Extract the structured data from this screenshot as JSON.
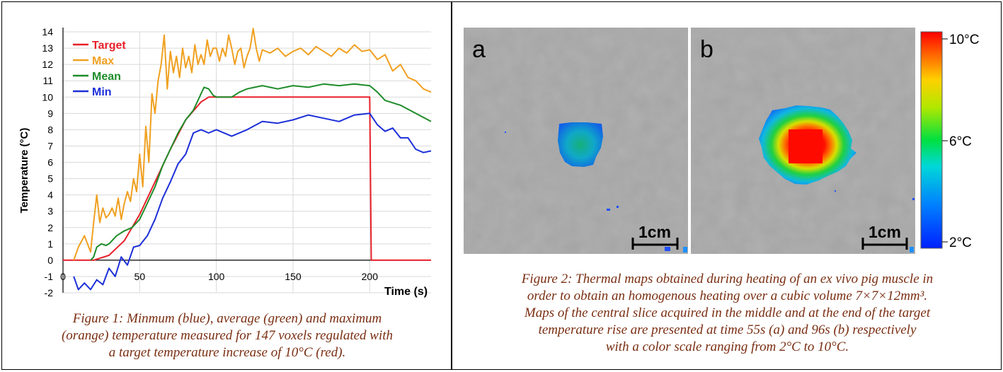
{
  "figure1": {
    "caption_lines": [
      "Figure 1: Minmum (blue), average (green) and maximum",
      "(orange) temperature measured for 147 voxels regulated with",
      "a target temperature increase of 10°C (red)."
    ],
    "chart_data": {
      "type": "line",
      "title": "",
      "xlabel": "Time (s)",
      "ylabel": "Temperature (°C)",
      "xlim": [
        0,
        240
      ],
      "ylim": [
        -2,
        14
      ],
      "x_ticks": [
        0,
        50,
        100,
        150,
        200
      ],
      "y_ticks": [
        -2,
        -1,
        0,
        1,
        2,
        3,
        4,
        5,
        6,
        7,
        8,
        9,
        10,
        11,
        12,
        13,
        14
      ],
      "grid": true,
      "legend_position": "top-left",
      "series": [
        {
          "name": "Target",
          "color": "#e8202a",
          "x": [
            0,
            20,
            30,
            40,
            50,
            60,
            70,
            80,
            90,
            95,
            100,
            200,
            201,
            240
          ],
          "y": [
            0,
            0,
            0.3,
            1.2,
            2.8,
            4.8,
            6.8,
            8.6,
            9.7,
            10,
            10,
            10,
            0,
            0
          ]
        },
        {
          "name": "Max",
          "color": "#f0a020",
          "x": [
            7,
            10,
            14,
            18,
            20,
            22,
            24,
            26,
            28,
            30,
            32,
            34,
            36,
            38,
            40,
            42,
            44,
            46,
            48,
            50,
            52,
            54,
            56,
            58,
            60,
            62,
            64,
            66,
            68,
            70,
            72,
            74,
            76,
            78,
            80,
            82,
            84,
            86,
            88,
            90,
            92,
            94,
            96,
            98,
            100,
            102,
            104,
            106,
            108,
            110,
            112,
            114,
            116,
            118,
            120,
            122,
            124,
            126,
            128,
            130,
            135,
            140,
            145,
            150,
            155,
            160,
            165,
            170,
            175,
            180,
            185,
            190,
            195,
            200,
            205,
            210,
            215,
            220,
            225,
            230,
            235,
            240
          ],
          "y": [
            0,
            0.8,
            1.5,
            0.5,
            2.3,
            4.0,
            2.3,
            3.2,
            2.6,
            2.8,
            3.2,
            2.7,
            3.8,
            2.5,
            3.5,
            4.2,
            3.6,
            5.0,
            4.2,
            6.5,
            4.5,
            8.2,
            6.0,
            10.2,
            9.0,
            11.0,
            12.0,
            13.8,
            10.5,
            12.8,
            11.5,
            12.5,
            11.2,
            13.0,
            11.8,
            12.5,
            11.5,
            13.2,
            12.0,
            12.6,
            12.0,
            13.5,
            12.5,
            13.0,
            13.0,
            12.2,
            13.0,
            12.5,
            13.8,
            13.0,
            12.0,
            12.8,
            13.0,
            11.8,
            12.5,
            13.0,
            14.2,
            13.0,
            12.2,
            12.9,
            12.7,
            13.0,
            12.5,
            12.8,
            13.0,
            12.6,
            13.1,
            12.8,
            12.5,
            13.0,
            12.7,
            13.2,
            12.8,
            12.9,
            12.3,
            12.6,
            11.6,
            12.0,
            11.2,
            11.0,
            10.5,
            10.3
          ]
        },
        {
          "name": "Mean",
          "color": "#1e8c2a",
          "x": [
            18,
            20,
            22,
            25,
            28,
            30,
            35,
            40,
            45,
            50,
            55,
            60,
            65,
            70,
            75,
            80,
            85,
            88,
            90,
            92,
            95,
            98,
            100,
            105,
            110,
            115,
            120,
            125,
            130,
            140,
            150,
            160,
            170,
            180,
            190,
            200,
            205,
            210,
            220,
            230,
            240
          ],
          "y": [
            0,
            0.2,
            0.8,
            1.0,
            0.9,
            1.0,
            1.5,
            1.8,
            2.0,
            2.5,
            3.5,
            4.5,
            5.8,
            6.8,
            7.8,
            8.6,
            9.2,
            9.8,
            10.2,
            10.6,
            10.5,
            10.1,
            10.0,
            10.0,
            10.0,
            10.3,
            10.5,
            10.6,
            10.7,
            10.5,
            10.7,
            10.6,
            10.8,
            10.7,
            10.8,
            10.7,
            10.3,
            9.8,
            9.5,
            9.0,
            8.5
          ]
        },
        {
          "name": "Min",
          "color": "#1c2fd8",
          "x": [
            7,
            10,
            14,
            18,
            22,
            26,
            30,
            34,
            38,
            42,
            46,
            50,
            55,
            60,
            65,
            70,
            75,
            80,
            85,
            90,
            95,
            100,
            110,
            120,
            130,
            140,
            150,
            160,
            170,
            180,
            190,
            200,
            205,
            210,
            215,
            220,
            225,
            230,
            235,
            240
          ],
          "y": [
            -1.0,
            -1.8,
            -1.4,
            -1.8,
            -1.2,
            -1.5,
            -0.5,
            -1.0,
            0.2,
            -0.3,
            0.8,
            0.9,
            1.5,
            2.5,
            3.8,
            4.8,
            5.9,
            6.5,
            7.8,
            8.0,
            7.8,
            8.0,
            7.6,
            8.0,
            8.5,
            8.4,
            8.6,
            8.9,
            8.7,
            8.5,
            8.9,
            9.0,
            8.3,
            7.9,
            8.1,
            7.5,
            7.5,
            6.8,
            6.6,
            6.7
          ]
        }
      ]
    }
  },
  "figure2": {
    "panels": [
      {
        "letter": "a",
        "scale_label": "1cm"
      },
      {
        "letter": "b",
        "scale_label": "1cm"
      }
    ],
    "colorbar": {
      "top_label": "10°C",
      "mid_label": "6°C",
      "bottom_label": "2°C"
    },
    "caption_lines": [
      "Figure 2: Thermal maps obtained during heating of an ex vivo pig muscle  in",
      "order to obtain an homogenous heating over a cubic volume 7×7×12mm³.",
      "Maps of the central slice acquired in the middle and at the end of the target",
      "temperature rise are presented at  time 55s (a) and 96s (b) respectively",
      "with a color scale ranging from 2°C to 10°C."
    ]
  }
}
